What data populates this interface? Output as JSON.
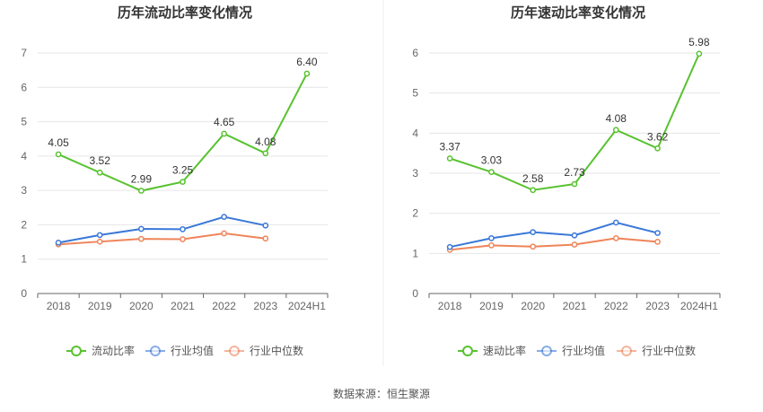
{
  "source_note": "数据来源：恒生聚源",
  "colors": {
    "main": "#58c22f",
    "avg": "#3a78d8",
    "median": "#ef8459",
    "grid": "#e6e6e6",
    "axis": "#666666",
    "divider": "#eeeeee"
  },
  "chart_data": [
    {
      "type": "line",
      "title": "历年流动比率变化情况",
      "categories": [
        "2018",
        "2019",
        "2020",
        "2021",
        "2022",
        "2023",
        "2024H1"
      ],
      "ylim": [
        0,
        7
      ],
      "yticks": [
        "0",
        "1",
        "2",
        "3",
        "4",
        "5",
        "6",
        "7"
      ],
      "series": [
        {
          "name": "流动比率",
          "role": "main",
          "values": [
            4.05,
            3.52,
            2.99,
            3.25,
            4.65,
            4.08,
            6.4
          ],
          "labels": [
            "4.05",
            "3.52",
            "2.99",
            "3.25",
            "4.65",
            "4.08",
            "6.40"
          ]
        },
        {
          "name": "行业均值",
          "role": "avg",
          "values": [
            1.48,
            1.7,
            1.88,
            1.87,
            2.23,
            1.98,
            null
          ]
        },
        {
          "name": "行业中位数",
          "role": "median",
          "values": [
            1.43,
            1.51,
            1.59,
            1.58,
            1.75,
            1.6,
            null
          ]
        }
      ]
    },
    {
      "type": "line",
      "title": "历年速动比率变化情况",
      "categories": [
        "2018",
        "2019",
        "2020",
        "2021",
        "2022",
        "2023",
        "2024H1"
      ],
      "ylim": [
        0,
        6
      ],
      "yticks": [
        "0",
        "1",
        "2",
        "3",
        "4",
        "5",
        "6"
      ],
      "series": [
        {
          "name": "速动比率",
          "role": "main",
          "values": [
            3.37,
            3.03,
            2.58,
            2.73,
            4.08,
            3.62,
            5.98
          ],
          "labels": [
            "3.37",
            "3.03",
            "2.58",
            "2.73",
            "4.08",
            "3.62",
            "5.98"
          ]
        },
        {
          "name": "行业均值",
          "role": "avg",
          "values": [
            1.16,
            1.38,
            1.53,
            1.45,
            1.77,
            1.51,
            null
          ]
        },
        {
          "name": "行业中位数",
          "role": "median",
          "values": [
            1.09,
            1.2,
            1.17,
            1.22,
            1.38,
            1.29,
            null
          ]
        }
      ]
    }
  ]
}
